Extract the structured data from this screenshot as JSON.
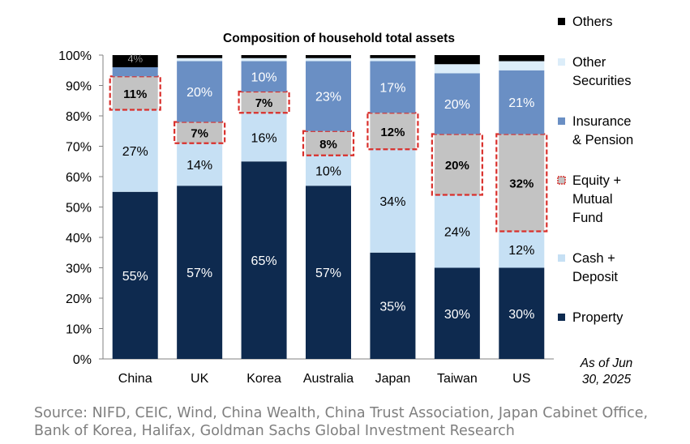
{
  "chart_data": {
    "type": "bar",
    "stacked": true,
    "title": "Composition of household total assets",
    "categories": [
      "China",
      "UK",
      "Korea",
      "Australia",
      "Japan",
      "Taiwan",
      "US"
    ],
    "ylim": [
      0,
      100
    ],
    "yticks": [
      "0%",
      "10%",
      "20%",
      "30%",
      "40%",
      "50%",
      "60%",
      "70%",
      "80%",
      "90%",
      "100%"
    ],
    "series": [
      {
        "name": "Property",
        "color": "#0e2a4f",
        "values": [
          55,
          57,
          65,
          57,
          35,
          30,
          30
        ],
        "labels": [
          "55%",
          "57%",
          "65%",
          "57%",
          "35%",
          "30%",
          "30%"
        ]
      },
      {
        "name": "Cash + Deposit",
        "color": "#c6e0f4",
        "values": [
          27,
          14,
          16,
          10,
          34,
          24,
          12
        ],
        "labels": [
          "27%",
          "14%",
          "16%",
          "10%",
          "34%",
          "24%",
          "12%"
        ]
      },
      {
        "name": "Equity + Mutual Fund",
        "color": "#c3c3c3",
        "values": [
          11,
          7,
          7,
          8,
          12,
          20,
          32
        ],
        "labels": [
          "11%",
          "7%",
          "7%",
          "8%",
          "12%",
          "20%",
          "32%"
        ]
      },
      {
        "name": "Insurance & Pension",
        "color": "#6a8fc4",
        "values": [
          3,
          20,
          10,
          23,
          17,
          20,
          21
        ],
        "labels": [
          "",
          "20%",
          "10%",
          "23%",
          "17%",
          "20%",
          "21%"
        ]
      },
      {
        "name": "Other Securities",
        "color": "#dcedf9",
        "values": [
          0,
          1,
          1,
          1,
          1,
          3,
          3
        ],
        "labels": [
          "",
          "",
          "",
          "",
          "",
          "",
          ""
        ]
      },
      {
        "name": "Others",
        "color": "#000000",
        "values": [
          4,
          1,
          1,
          1,
          1,
          3,
          2
        ],
        "labels": [
          "4%",
          "",
          "",
          "",
          "",
          "",
          ""
        ]
      }
    ],
    "legend": [
      {
        "name": "Others",
        "lines": [
          "Others"
        ],
        "color": "#000000"
      },
      {
        "name": "Other Securities",
        "lines": [
          "Other",
          "Securities"
        ],
        "color": "#dcedf9"
      },
      {
        "name": "Insurance & Pension",
        "lines": [
          "Insurance",
          "& Pension"
        ],
        "color": "#6a8fc4"
      },
      {
        "name": "Equity + Mutual Fund",
        "lines": [
          "Equity +",
          "Mutual",
          "Fund"
        ],
        "color": "#c3c3c3",
        "dashed": true
      },
      {
        "name": "Cash + Deposit",
        "lines": [
          "Cash +",
          "Deposit"
        ],
        "color": "#c6e0f4"
      },
      {
        "name": "Property",
        "lines": [
          "Property"
        ],
        "color": "#0e2a4f"
      }
    ],
    "annotation": [
      "As of Jun",
      "30, 2025"
    ],
    "highlight_color": "#d9302c"
  },
  "source": "Source: NIFD, CEIC, Wind, China Wealth, China Trust Association, Japan Cabinet Office, Bank of Korea, Halifax, Goldman Sachs Global Investment Research"
}
